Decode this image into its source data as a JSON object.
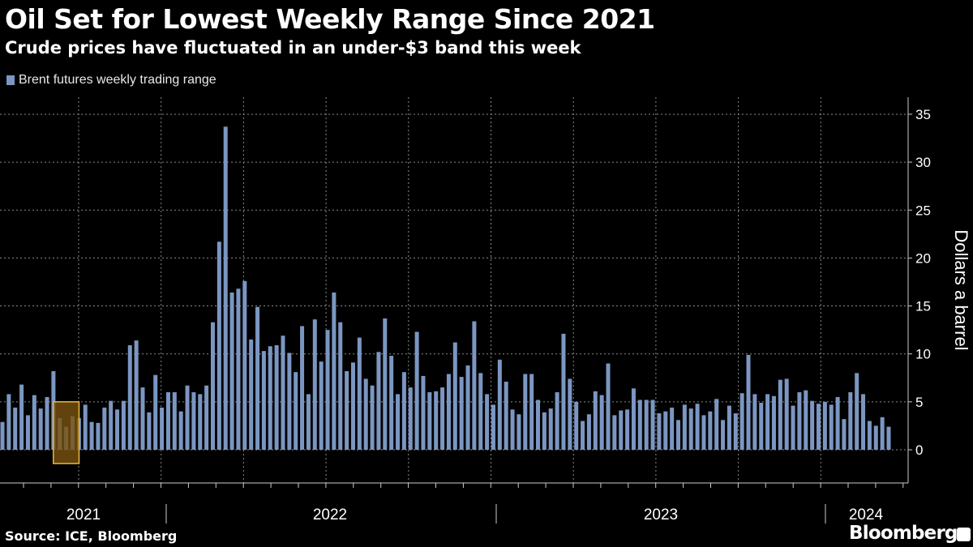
{
  "header": {
    "title": "Oil Set for Lowest Weekly Range Since 2021",
    "subtitle": "Crude prices have fluctuated in an under-$3 band this week"
  },
  "footer": {
    "source": "Source: ICE, Bloomberg",
    "brand": "Bloomberg",
    "brand_icon": "bloomberg-chart-icon"
  },
  "colors": {
    "bar": "#7b96c2",
    "highlight_fill": "#7a5210",
    "highlight_border": "#e8b93a",
    "background": "#000000",
    "grid": "#8a8a8a"
  },
  "chart_data": {
    "type": "bar",
    "title": "Oil Set for Lowest Weekly Range Since 2021",
    "subtitle": "Crude prices have fluctuated in an under-$3 band this week",
    "legend": [
      {
        "name": "Brent futures weekly trading range",
        "color": "#7b96c2"
      }
    ],
    "legend_placement": "top-left",
    "ylabel": "Dollars a barrel",
    "y_axis_side": "right",
    "ylim": [
      -3.5,
      36
    ],
    "yticks": [
      0,
      5,
      10,
      15,
      20,
      25,
      30,
      35
    ],
    "x_tick_labels": [
      "2021",
      "2022",
      "2023",
      "2024"
    ],
    "grid": true,
    "series": [
      {
        "name": "Brent futures weekly trading range",
        "values": [
          2.9,
          5.8,
          4.4,
          6.8,
          3.6,
          5.7,
          4.3,
          5.5,
          8.2,
          3.3,
          2.4,
          3.5,
          3.3,
          4.7,
          2.9,
          2.8,
          4.4,
          5.1,
          4.2,
          5.1,
          10.9,
          11.4,
          6.5,
          3.9,
          7.8,
          4.4,
          6.0,
          6.0,
          4.0,
          6.7,
          6.0,
          5.8,
          6.7,
          13.3,
          21.7,
          33.7,
          16.4,
          16.8,
          17.6,
          11.5,
          14.9,
          10.3,
          10.8,
          10.9,
          11.9,
          10.1,
          8.1,
          12.9,
          5.8,
          13.6,
          9.2,
          12.5,
          16.4,
          13.3,
          8.2,
          9.1,
          11.7,
          7.4,
          6.7,
          10.2,
          13.7,
          9.8,
          5.8,
          8.1,
          6.5,
          12.3,
          7.7,
          6.0,
          6.1,
          6.5,
          7.9,
          11.2,
          7.6,
          8.8,
          13.4,
          8.0,
          5.8,
          4.7,
          9.4,
          7.1,
          4.2,
          3.7,
          7.9,
          7.9,
          5.2,
          3.9,
          4.3,
          6.0,
          12.1,
          7.4,
          5.0,
          3.0,
          3.7,
          6.1,
          5.7,
          9.0,
          3.6,
          4.1,
          4.2,
          6.4,
          5.2,
          5.2,
          5.2,
          3.8,
          4.0,
          4.4,
          3.1,
          4.7,
          4.3,
          4.8,
          3.6,
          4.0,
          5.3,
          3.1,
          4.6,
          3.8,
          5.9,
          9.9,
          5.8,
          4.9,
          5.8,
          5.6,
          7.3,
          7.4,
          4.6,
          6.0,
          6.2,
          5.1,
          4.8,
          5.0,
          4.7,
          5.5,
          3.2,
          6.0,
          8.0,
          5.8,
          3.0,
          2.5,
          3.4,
          2.4
        ]
      }
    ],
    "highlights": [
      {
        "from_index": 9,
        "to_index": 11
      },
      {
        "from_index": 138,
        "to_index": 140
      }
    ]
  }
}
